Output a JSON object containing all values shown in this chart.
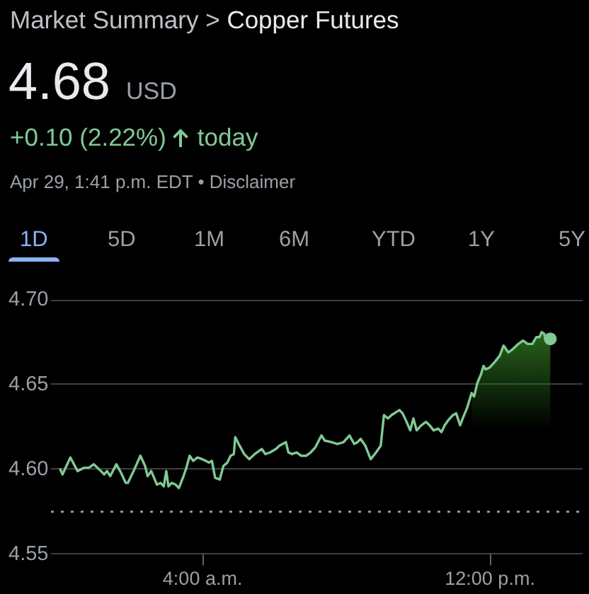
{
  "chart_data": {
    "type": "line",
    "title": "Copper Futures",
    "annotations": [
      "Market Summary >",
      "4.68",
      "USD",
      "+0.10 (2.22%)",
      "today",
      "Apr 29, 1:41 p.m. EDT • Disclaimer",
      "1D",
      "5D",
      "1M",
      "6M",
      "YTD",
      "1Y",
      "5Y"
    ],
    "x": [
      0.04,
      0.1,
      0.32,
      0.52,
      0.71,
      0.84,
      0.97,
      1.17,
      1.26,
      1.34,
      1.43,
      1.6,
      1.73,
      1.86,
      1.92,
      2.08,
      2.27,
      2.4,
      2.47,
      2.57,
      2.73,
      2.83,
      2.92,
      2.99,
      3.05,
      3.14,
      3.25,
      3.34,
      3.47,
      3.55,
      3.64,
      3.74,
      3.86,
      3.99,
      4.09,
      4.18,
      4.26,
      4.35,
      4.48,
      4.58,
      4.69,
      4.78,
      4.87,
      4.91,
      5.03,
      5.16,
      5.3,
      5.45,
      5.65,
      5.75,
      5.88,
      6.04,
      6.14,
      6.32,
      6.39,
      6.49,
      6.62,
      6.75,
      6.88,
      7.01,
      7.14,
      7.31,
      7.4,
      7.6,
      7.75,
      7.92,
      8.09,
      8.22,
      8.31,
      8.4,
      8.53,
      8.68,
      8.83,
      8.96,
      9.05,
      9.16,
      9.26,
      9.48,
      9.57,
      9.68,
      9.78,
      9.87,
      9.96,
      10.09,
      10.22,
      10.32,
      10.43,
      10.56,
      10.65,
      10.74,
      10.84,
      10.97,
      11.06,
      11.17,
      11.26,
      11.36,
      11.49,
      11.56,
      11.65,
      11.75,
      11.82,
      11.88,
      11.99,
      12.12,
      12.27,
      12.38,
      12.51,
      12.64,
      12.79,
      12.92,
      13.05,
      13.18,
      13.29,
      13.38,
      13.44,
      13.51,
      13.55,
      13.6,
      13.68
    ],
    "series": [
      {
        "color": "#81c995",
        "values": [
          4.6,
          4.597,
          4.607,
          4.599,
          4.601,
          4.601,
          4.603,
          4.599,
          4.597,
          4.599,
          4.596,
          4.603,
          4.598,
          4.592,
          4.592,
          4.599,
          4.608,
          4.602,
          4.596,
          4.599,
          4.591,
          4.592,
          4.59,
          4.599,
          4.59,
          4.592,
          4.591,
          4.589,
          4.596,
          4.601,
          4.608,
          4.605,
          4.607,
          4.606,
          4.605,
          4.604,
          4.605,
          4.595,
          4.594,
          4.602,
          4.604,
          4.608,
          4.609,
          4.619,
          4.614,
          4.609,
          4.606,
          4.609,
          4.612,
          4.609,
          4.61,
          4.612,
          4.614,
          4.616,
          4.61,
          4.609,
          4.61,
          4.608,
          4.608,
          4.61,
          4.613,
          4.62,
          4.617,
          4.616,
          4.615,
          4.616,
          4.62,
          4.615,
          4.616,
          4.618,
          4.614,
          4.606,
          4.61,
          4.614,
          4.632,
          4.63,
          4.632,
          4.635,
          4.633,
          4.628,
          4.623,
          4.63,
          4.623,
          4.626,
          4.628,
          4.626,
          4.623,
          4.624,
          4.622,
          4.626,
          4.629,
          4.632,
          4.633,
          4.626,
          4.631,
          4.636,
          4.645,
          4.643,
          4.651,
          4.656,
          4.661,
          4.659,
          4.66,
          4.663,
          4.667,
          4.673,
          4.669,
          4.671,
          4.674,
          4.676,
          4.674,
          4.674,
          4.678,
          4.678,
          4.681,
          4.68,
          4.676,
          4.678,
          4.677
        ]
      },
      {
        "type": "scatter",
        "color": "#81c995",
        "marker": "circle",
        "x": [
          13.68
        ],
        "values": [
          4.677
        ]
      }
    ],
    "xlim": [
      -0.22,
      14.58
    ],
    "xticks": [
      {
        "value": 4,
        "label": "4:00 a.m."
      },
      {
        "value": 12,
        "label": "12:00 p.m."
      }
    ],
    "ylim": [
      4.55,
      4.7
    ],
    "yticks": [
      4.55,
      {
        "value": 4.6,
        "label": "4.60"
      },
      4.65,
      {
        "value": 4.7,
        "label": "4.70"
      }
    ],
    "ref_lines": [
      {
        "axis": "y",
        "value": 4.575,
        "color": "#9aa0a6",
        "line_style": "dotted"
      }
    ],
    "bands": [
      {
        "axis": "x",
        "from": 11.49,
        "to": 13.68,
        "color": "#2a6a1c"
      }
    ],
    "grid": "y",
    "marker": "none"
  }
}
